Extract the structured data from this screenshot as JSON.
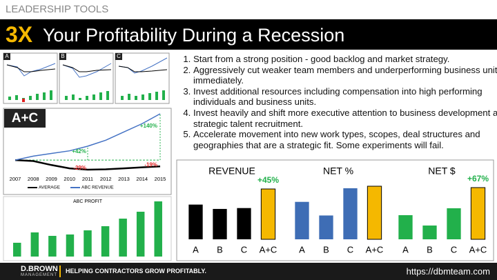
{
  "header": {
    "kicker": "LEADERSHIP TOOLS",
    "title_accent": "3X",
    "title": "Your Profitability During a Recession"
  },
  "thumbnails": [
    "A",
    "B",
    "C"
  ],
  "list": [
    "Start from a strong position - good backlog and market strategy.",
    "Aggressively cut weaker team members and underperforming business units immediately.",
    "Invest additional resources including compensation into high performing individuals and business units.",
    "Invest heavily and shift more executive attention to business development and strategic talent recruitment.",
    "Accelerate movement into new work types, scopes, deal structures and geographies that are a strategic fit.  Some experiments will fail."
  ],
  "chart_data": [
    {
      "type": "line",
      "label": "A+C",
      "x": [
        2007,
        2008,
        2009,
        2010,
        2011,
        2012,
        2013,
        2014,
        2015
      ],
      "series": [
        {
          "name": "AVERAGE",
          "color": "#000000",
          "values": [
            100,
            97,
            85,
            75,
            71,
            72,
            75,
            78,
            81
          ]
        },
        {
          "name": "ABC REVENUE",
          "color": "#4472c4",
          "values": [
            100,
            112,
            120,
            128,
            142,
            160,
            185,
            210,
            240
          ]
        }
      ],
      "annotations": [
        {
          "text": "+140%",
          "color": "#22b04b"
        },
        {
          "text": "+42%",
          "color": "#22b04b"
        },
        {
          "text": "-29%",
          "color": "#e02020"
        },
        {
          "text": "-19%",
          "color": "#e02020"
        }
      ]
    },
    {
      "type": "bar",
      "title": "ABC PROFIT",
      "color": "#22b04b",
      "values": [
        20,
        35,
        30,
        32,
        38,
        44,
        55,
        65,
        80
      ]
    },
    {
      "type": "bar",
      "title": "REVENUE",
      "categories": [
        "A",
        "B",
        "C",
        "A+C"
      ],
      "values": [
        40,
        35,
        36,
        58
      ],
      "colors": [
        "#000000",
        "#000000",
        "#000000",
        "#f5b800"
      ],
      "annotation": "+45%"
    },
    {
      "type": "bar",
      "title": "NET %",
      "categories": [
        "A",
        "B",
        "C",
        "A+C"
      ],
      "values": [
        55,
        35,
        75,
        78
      ],
      "colors": [
        "#3e6db5",
        "#3e6db5",
        "#3e6db5",
        "#f5b800"
      ]
    },
    {
      "type": "bar",
      "title": "NET $",
      "categories": [
        "A",
        "B",
        "C",
        "A+C"
      ],
      "values": [
        35,
        20,
        45,
        75
      ],
      "colors": [
        "#22b04b",
        "#22b04b",
        "#22b04b",
        "#f5b800"
      ],
      "annotation": "+67%"
    }
  ],
  "footer": {
    "brand": "D.BROWN",
    "brand_sub": "MANAGEMENT",
    "tagline": "HELPING CONTRACTORS GROW PROFITABLY.",
    "url": "https://dbmteam.com"
  }
}
